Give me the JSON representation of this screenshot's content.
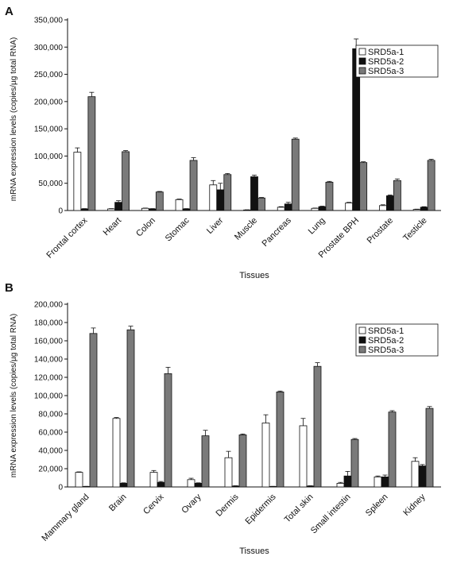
{
  "chart_data": [
    {
      "type": "bar",
      "panel": "A",
      "ylabel": "mRNA expression levels (copies/µg total RNA)",
      "xlabel": "Tissues",
      "ylim": [
        0,
        350000
      ],
      "yticks": [
        0,
        50000,
        100000,
        150000,
        200000,
        250000,
        300000,
        350000
      ],
      "ytick_labels": [
        "0",
        "50,000",
        "100,000",
        "150,000",
        "200,000",
        "250,000",
        "300,000",
        "350,000"
      ],
      "legend_position": "top-right",
      "categories": [
        "Frontal cortex",
        "Heart",
        "Colon",
        "Stomac",
        "Liver",
        "Muscle",
        "Pancreas",
        "Lung",
        "Prostate BPH",
        "Prostate",
        "Testicle"
      ],
      "series": [
        {
          "name": "SRD5a-1",
          "color": "#ffffff",
          "values": [
            107000,
            3000,
            4000,
            20000,
            47000,
            1000,
            6000,
            4000,
            14000,
            9000,
            2000
          ],
          "errors": [
            8000,
            500,
            500,
            1000,
            8000,
            300,
            1000,
            500,
            1000,
            1500,
            500
          ]
        },
        {
          "name": "SRD5a-2",
          "color": "#111111",
          "values": [
            3000,
            15000,
            3000,
            3000,
            38000,
            62000,
            12000,
            7000,
            297000,
            27000,
            6000
          ],
          "errors": [
            500,
            3000,
            500,
            500,
            12000,
            3000,
            3000,
            1000,
            18000,
            1500,
            1000
          ]
        },
        {
          "name": "SRD5a-3",
          "color": "#7a7a7a",
          "values": [
            209000,
            108000,
            34000,
            92000,
            66000,
            23000,
            131000,
            52000,
            88000,
            55000,
            92000
          ],
          "errors": [
            8000,
            2000,
            1000,
            5000,
            2000,
            1000,
            2000,
            1500,
            1500,
            3000,
            2000
          ]
        }
      ]
    },
    {
      "type": "bar",
      "panel": "B",
      "ylabel": "mRNA expression levels (copies/µg total RNA)",
      "xlabel": "Tissues",
      "ylim": [
        0,
        200000
      ],
      "yticks": [
        0,
        20000,
        40000,
        60000,
        80000,
        100000,
        120000,
        140000,
        160000,
        180000,
        200000
      ],
      "ytick_labels": [
        "0",
        "20,000",
        "40,000",
        "60,000",
        "80,000",
        "100,000",
        "120,000",
        "140,000",
        "160,000",
        "180,000",
        "200,000"
      ],
      "legend_position": "top-right",
      "categories": [
        "Mammary gland",
        "Brain",
        "Cervix",
        "Ovary",
        "Dermis",
        "Epidermis",
        "Total skin",
        "Small intestin",
        "Spleen",
        "Kidney"
      ],
      "series": [
        {
          "name": "SRD5a-1",
          "color": "#ffffff",
          "values": [
            16000,
            75000,
            16000,
            8000,
            32000,
            70000,
            67000,
            4000,
            11000,
            28000
          ],
          "errors": [
            500,
            1000,
            2000,
            1500,
            7000,
            9000,
            8000,
            1000,
            1000,
            4000
          ]
        },
        {
          "name": "SRD5a-2",
          "color": "#111111",
          "values": [
            500,
            4000,
            5000,
            4000,
            1000,
            500,
            1000,
            12000,
            11000,
            23000
          ],
          "errors": [
            200,
            500,
            1000,
            500,
            300,
            200,
            300,
            5000,
            2000,
            1500
          ]
        },
        {
          "name": "SRD5a-3",
          "color": "#7a7a7a",
          "values": [
            168000,
            172000,
            124000,
            56000,
            57000,
            104000,
            132000,
            52000,
            82000,
            86000
          ],
          "errors": [
            6000,
            4000,
            7000,
            6000,
            1000,
            1000,
            4000,
            1000,
            1500,
            2000
          ]
        }
      ]
    }
  ]
}
